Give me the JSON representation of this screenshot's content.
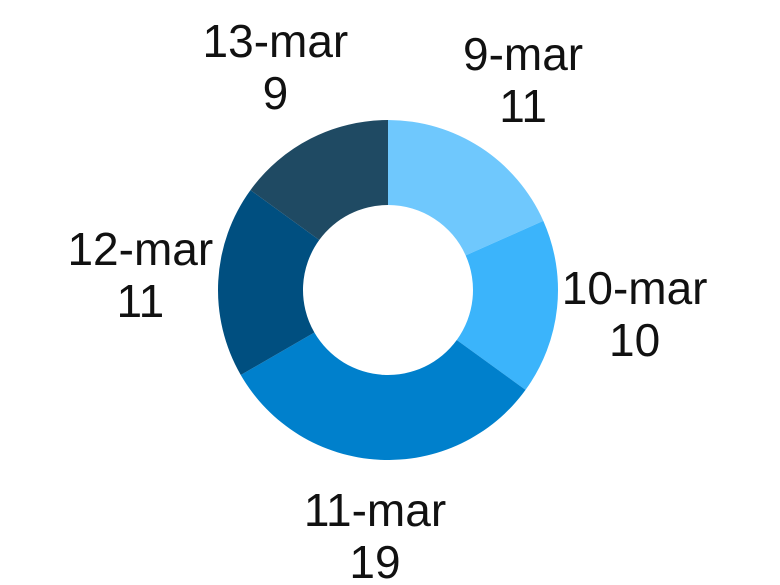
{
  "chart_data": {
    "type": "donut",
    "categories": [
      "9-mar",
      "10-mar",
      "11-mar",
      "12-mar",
      "13-mar"
    ],
    "values": [
      11,
      10,
      19,
      11,
      9
    ],
    "colors": [
      "#6fc8fd",
      "#3bb4fb",
      "#0080cc",
      "#004f80",
      "#1f4a63"
    ]
  }
}
